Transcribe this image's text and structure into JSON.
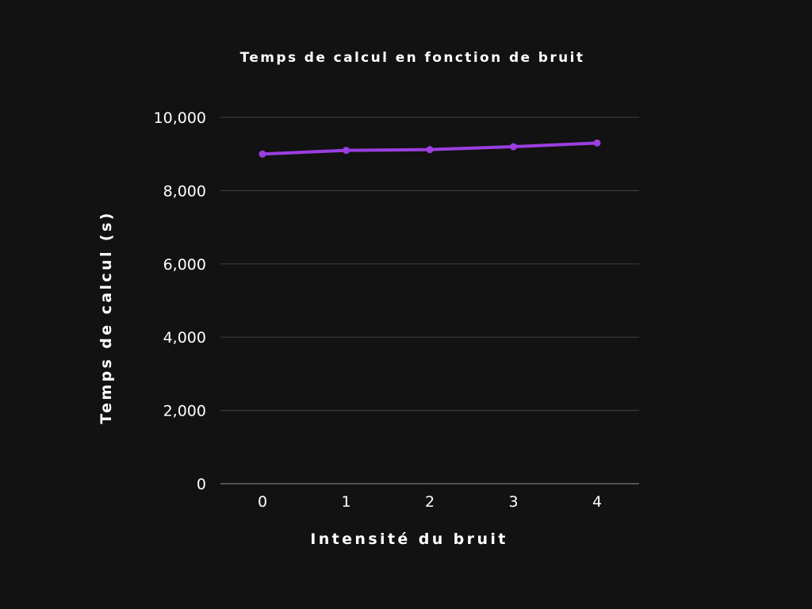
{
  "chart_data": {
    "type": "line",
    "title": "Temps de calcul en fonction de bruit",
    "xlabel": "Intensité du bruit",
    "ylabel": "Temps de calcul (s)",
    "x": [
      0,
      1,
      2,
      3,
      4
    ],
    "x_tick_labels": [
      "0",
      "1",
      "2",
      "3",
      "4"
    ],
    "y_ticks": [
      0,
      2000,
      4000,
      6000,
      8000,
      10000
    ],
    "y_tick_labels": [
      "0",
      "2,000",
      "4,000",
      "6,000",
      "8,000",
      "10,000"
    ],
    "ylim": [
      0,
      10000
    ],
    "series": [
      {
        "values": [
          9000,
          9100,
          9120,
          9200,
          9300
        ],
        "color": "#9b3fe0"
      }
    ],
    "grid": true,
    "legend": "none"
  },
  "colors": {
    "background": "#121212",
    "gridline": "#3a3a3a",
    "text": "#ffffff",
    "series": "#9b3fe0"
  }
}
